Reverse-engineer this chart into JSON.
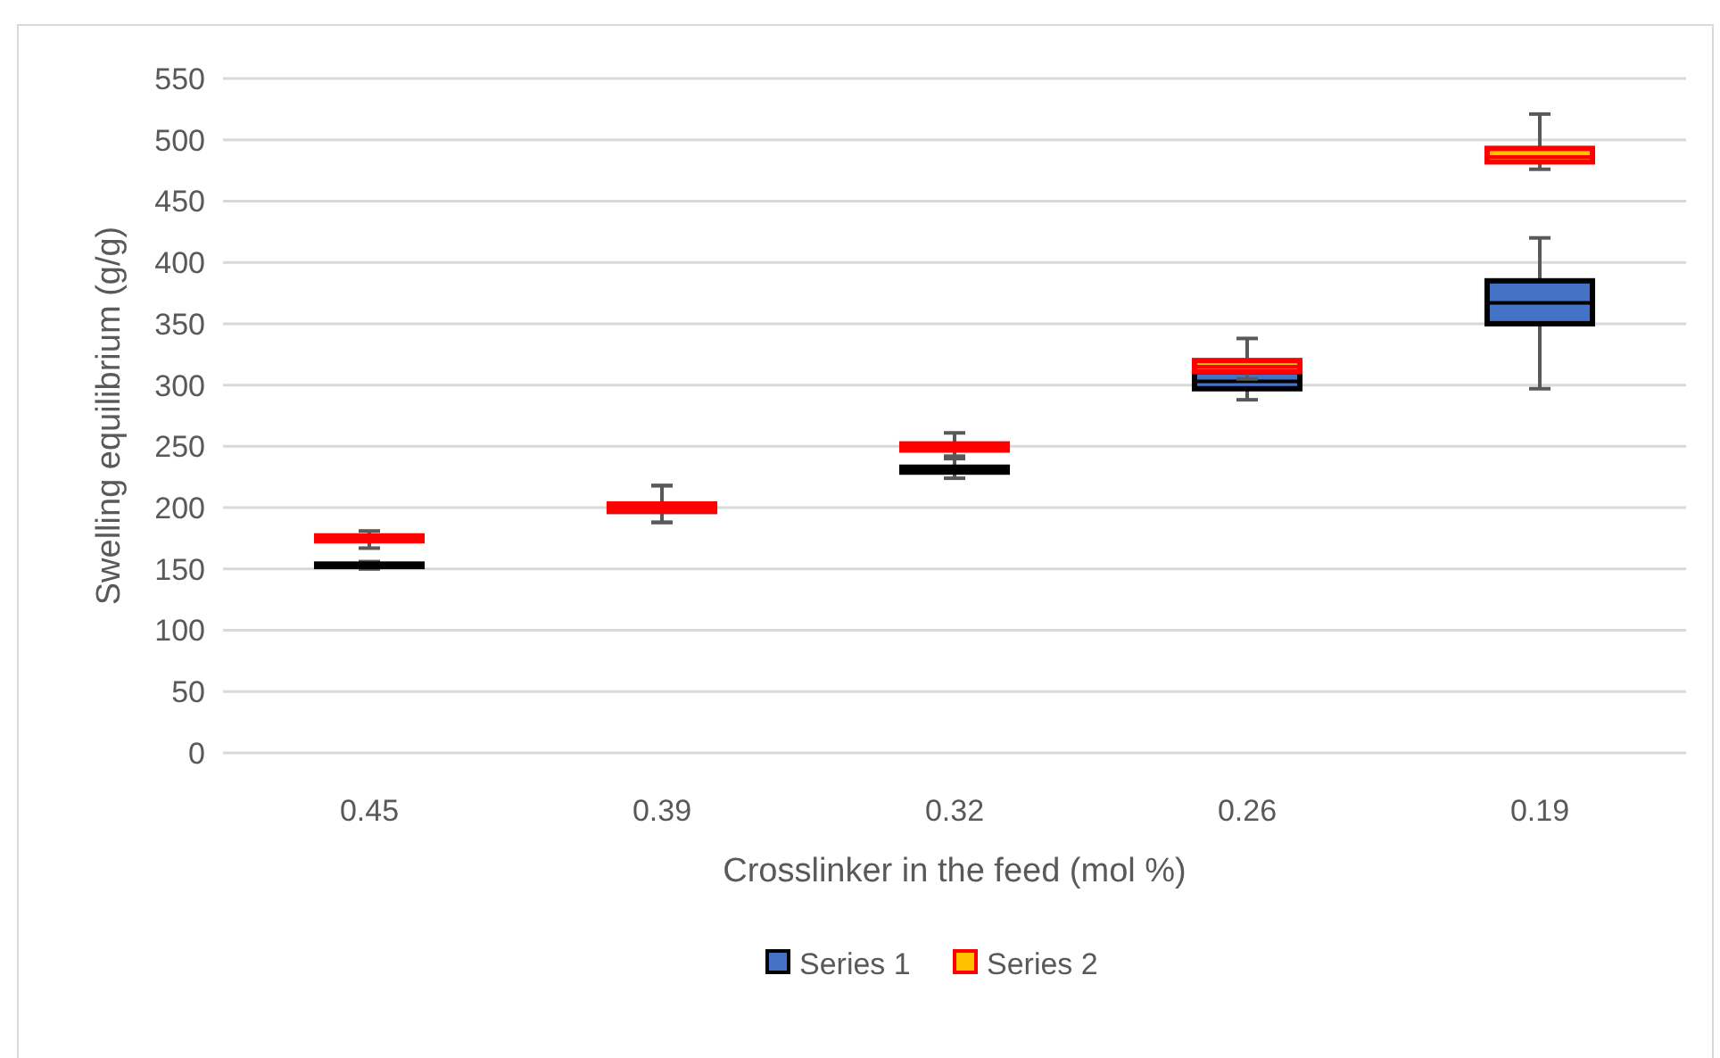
{
  "chart_data": {
    "type": "box",
    "xlabel": "Crosslinker in the feed (mol %)",
    "ylabel": "Swelling equilibrium (g/g)",
    "categories": [
      "0.45",
      "0.39",
      "0.32",
      "0.26",
      "0.19"
    ],
    "ylim": [
      0,
      550
    ],
    "yticks": [
      0,
      50,
      100,
      150,
      200,
      250,
      300,
      350,
      400,
      450,
      500,
      550
    ],
    "grid": "y",
    "legend": "bottom",
    "series": [
      {
        "name": "Series 1",
        "color": "#4472c4",
        "boxes": [
          {
            "low": 150,
            "q1": 152,
            "median": 153,
            "q3": 154,
            "high": 156
          },
          {
            "low": 188,
            "q1": 197,
            "median": 200,
            "q3": 203,
            "high": 218
          },
          {
            "low": 224,
            "q1": 229,
            "median": 231,
            "q3": 233,
            "high": 240
          },
          {
            "low": 288,
            "q1": 297,
            "median": 303,
            "q3": 311,
            "high": 318
          },
          {
            "low": 297,
            "q1": 350,
            "median": 367,
            "q3": 385,
            "high": 420
          }
        ]
      },
      {
        "name": "Series 2",
        "color": "#ffc000",
        "boxes": [
          {
            "low": 167,
            "q1": 173,
            "median": 175,
            "q3": 177,
            "high": 181
          },
          {
            "low": 188,
            "q1": 197,
            "median": 200,
            "q3": 203,
            "high": 218
          },
          {
            "low": 242,
            "q1": 247,
            "median": 250,
            "q3": 252,
            "high": 261
          },
          {
            "low": 305,
            "q1": 311,
            "median": 315,
            "q3": 320,
            "high": 338
          },
          {
            "low": 476,
            "q1": 482,
            "median": 486,
            "q3": 493,
            "high": 521
          }
        ]
      }
    ]
  }
}
